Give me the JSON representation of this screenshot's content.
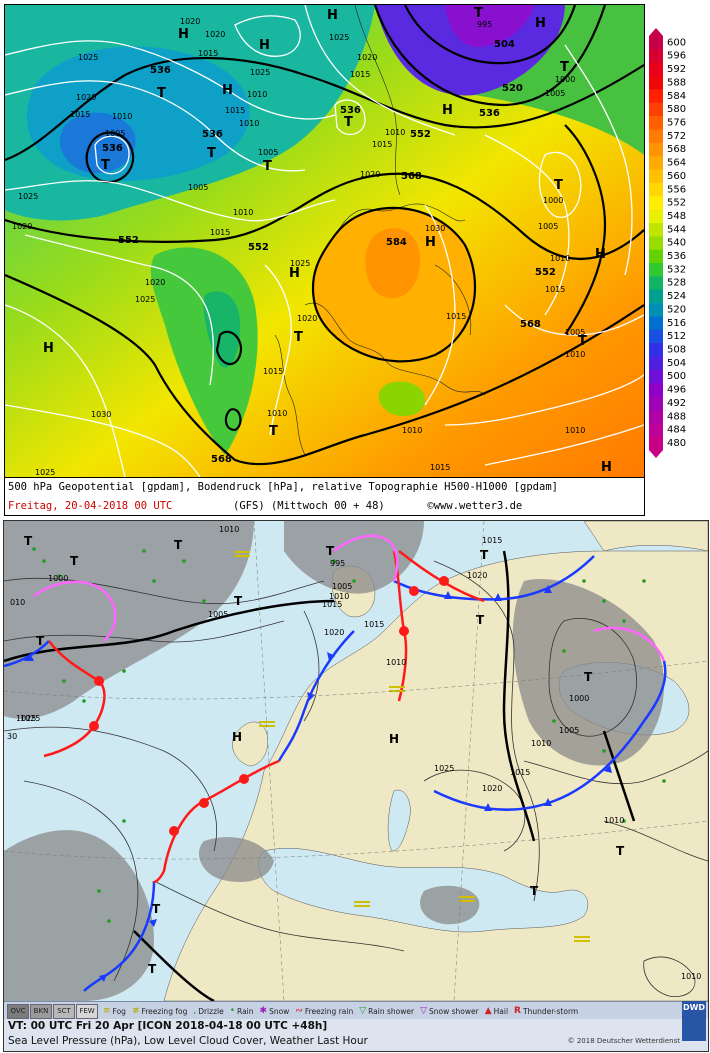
{
  "top_panel": {
    "caption_line1": "500 hPa Geopotential [gpdam], Bodendruck [hPa], relative Topographie H500-H1000 [gpdam]",
    "date_text": "Freitag, 20-04-2018  00 UTC",
    "model_text": "(GFS)  (Mittwoch 00 + 48)",
    "site_text": "©www.wetter3.de",
    "colorbar_labels": [
      "600",
      "596",
      "592",
      "588",
      "584",
      "580",
      "576",
      "572",
      "568",
      "564",
      "560",
      "556",
      "552",
      "548",
      "544",
      "540",
      "536",
      "532",
      "528",
      "524",
      "520",
      "516",
      "512",
      "508",
      "504",
      "500",
      "496",
      "492",
      "488",
      "484",
      "480"
    ],
    "colorbar_colors": [
      "#c8004a",
      "#d80030",
      "#e8001c",
      "#f00808",
      "#ff2000",
      "#ff4000",
      "#ff6000",
      "#ff7a00",
      "#ff9400",
      "#ffaa00",
      "#ffc000",
      "#ffd800",
      "#ffee00",
      "#e8f000",
      "#c0e600",
      "#96dc00",
      "#64d200",
      "#32c832",
      "#10b464",
      "#00a090",
      "#0090b4",
      "#0070d0",
      "#1a50e0",
      "#3030e8",
      "#5020e0",
      "#7010d8",
      "#8c00c8",
      "#a000b8",
      "#b000a8",
      "#bc0098",
      "#c80088"
    ],
    "geopotential_labels": [
      "536",
      "536",
      "536",
      "552",
      "552",
      "552",
      "552",
      "568",
      "568",
      "584",
      "504",
      "520",
      "536",
      "536",
      "552",
      "552",
      "568"
    ],
    "pressure_labels": [
      "1020",
      "1020",
      "1025",
      "1015",
      "1020",
      "1025",
      "1015",
      "1010",
      "1005",
      "1015",
      "1010",
      "1005",
      "1005",
      "1010",
      "1015",
      "1020",
      "1025",
      "1020",
      "1025",
      "1030",
      "1015",
      "1010",
      "1025",
      "1020",
      "1015",
      "1010",
      "1020",
      "1030",
      "1025",
      "1015",
      "1020",
      "1005",
      "1000",
      "1005",
      "1010",
      "1015",
      "1000",
      "1005",
      "1010",
      "1010",
      "1010",
      "1015",
      "1025",
      "1015",
      "995",
      "1010"
    ],
    "high_marks": [
      "H",
      "H",
      "H",
      "H",
      "H",
      "H",
      "H",
      "H",
      "H",
      "H",
      "H"
    ],
    "low_marks": [
      "T",
      "T",
      "T",
      "T",
      "T",
      "T",
      "T",
      "T",
      "T",
      "T",
      "T"
    ]
  },
  "bottom_panel": {
    "info_line1": "VT: 00 UTC Fri 20 Apr [ICON 2018-04-18 00 UTC +48h]",
    "info_line2": "Sea Level Pressure (hPa), Low Level Cloud Cover, Weather Last Hour",
    "copyright": "© 2018 Deutscher Wetterdienst",
    "logo": "DWD",
    "legend": {
      "cloud_boxes": [
        "OVC",
        "BKN",
        "SCT",
        "FEW"
      ],
      "items": [
        "Fog",
        "Freezing fog",
        "Drizzle",
        "Rain",
        "Snow",
        "Freezing rain",
        "Rain shower",
        "Snow shower",
        "Hail",
        "Thunder-storm"
      ]
    },
    "pressure_labels": [
      "1010",
      "1015",
      "995",
      "1000",
      "1005",
      "1010",
      "1015",
      "1020",
      "1005",
      "1000",
      "1005",
      "1010",
      "1025",
      "1020",
      "1025",
      "1015",
      "1010",
      "1020",
      "1015",
      "1010",
      "1010",
      "010",
      "1025",
      "30"
    ],
    "high_marks": [
      "H",
      "H"
    ],
    "low_marks": [
      "T",
      "T",
      "T",
      "T",
      "T",
      "T",
      "T",
      "T",
      "T",
      "T",
      "T",
      "T",
      "T"
    ]
  },
  "colors": {
    "cold_front": "#1a3aff",
    "warm_front": "#ff1a1a",
    "occlusion": "#ff66ff",
    "sea": "#cfe9f3",
    "land": "#efe8c4"
  }
}
